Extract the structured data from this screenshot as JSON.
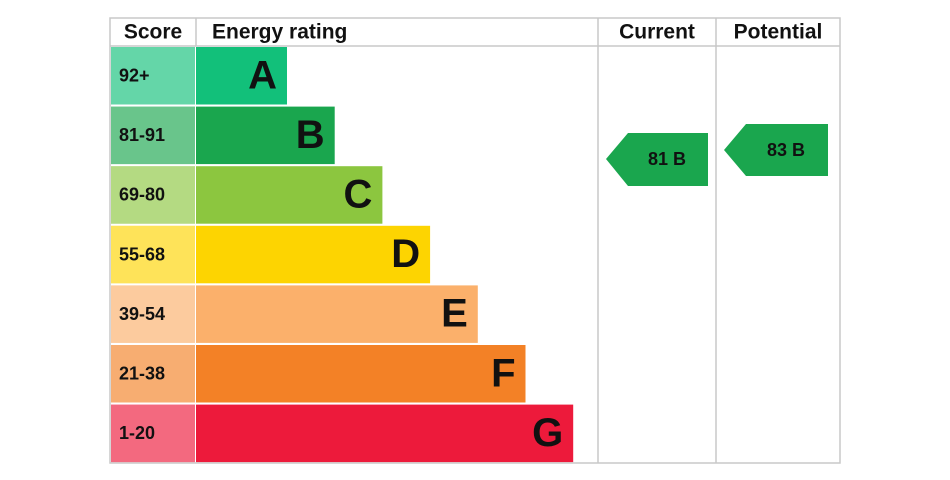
{
  "header": {
    "score": "Score",
    "rating": "Energy rating",
    "current": "Current",
    "potential": "Potential"
  },
  "bands": [
    {
      "score": "92+",
      "letter": "A",
      "color": "#12c07a"
    },
    {
      "score": "81-91",
      "letter": "B",
      "color": "#1aa64e"
    },
    {
      "score": "69-80",
      "letter": "C",
      "color": "#8cc63f"
    },
    {
      "score": "55-68",
      "letter": "D",
      "color": "#fdd401"
    },
    {
      "score": "39-54",
      "letter": "E",
      "color": "#fbb06b"
    },
    {
      "score": "21-38",
      "letter": "F",
      "color": "#f38126"
    },
    {
      "score": "1-20",
      "letter": "G",
      "color": "#ed1a3b"
    }
  ],
  "current": {
    "label": "81 B",
    "color": "#1aa64e"
  },
  "potential": {
    "label": "83 B",
    "color": "#1aa64e"
  }
}
